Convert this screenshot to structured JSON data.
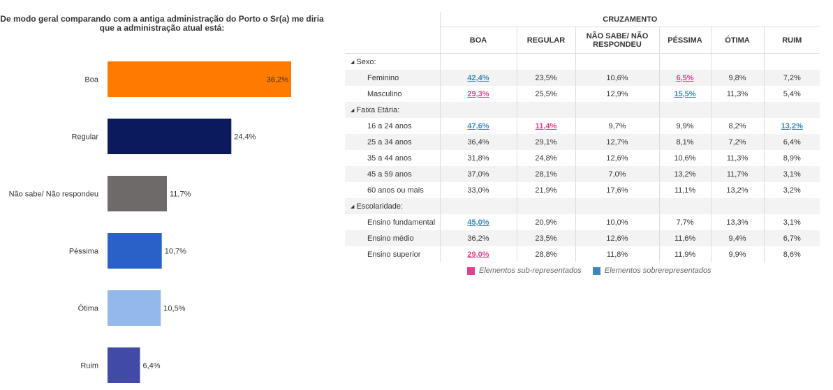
{
  "chart_data": {
    "type": "bar",
    "orientation": "horizontal",
    "title": "De modo geral comparando com a antiga administração do Porto o Sr(a) me diria que a administração atual está:",
    "categories": [
      "Boa",
      "Regular",
      "Não sabe/ Não respondeu",
      "Péssima",
      "Ótima",
      "Ruim"
    ],
    "values": [
      36.2,
      24.4,
      11.7,
      10.7,
      10.5,
      6.4
    ],
    "value_labels": [
      "36,2%",
      "24,4%",
      "11,7%",
      "10,7%",
      "10,5%",
      "6,4%"
    ],
    "colors": [
      "#ff7b00",
      "#0a1a5c",
      "#6e6a6a",
      "#2a61c9",
      "#93b9eb",
      "#414aa6"
    ],
    "xlabel": "",
    "ylabel": ""
  },
  "crosstab": {
    "group_header": "CRUZAMENTO",
    "columns": [
      "BOA",
      "REGULAR",
      "NÃO SABE/ NÃO RESPONDEU",
      "PÉSSIMA",
      "ÓTIMA",
      "RUIM"
    ],
    "sections": [
      {
        "title": "Sexo:",
        "rows": [
          {
            "label": "Feminino",
            "cells": [
              {
                "v": "42,4%",
                "f": "over"
              },
              {
                "v": "23,5%"
              },
              {
                "v": "10,6%"
              },
              {
                "v": "6,5%",
                "f": "under"
              },
              {
                "v": "9,8%"
              },
              {
                "v": "7,2%"
              }
            ]
          },
          {
            "label": "Masculino",
            "cells": [
              {
                "v": "29,3%",
                "f": "under"
              },
              {
                "v": "25,5%"
              },
              {
                "v": "12,9%"
              },
              {
                "v": "15,5%",
                "f": "over"
              },
              {
                "v": "11,3%"
              },
              {
                "v": "5,4%"
              }
            ]
          }
        ]
      },
      {
        "title": "Faixa Etária:",
        "rows": [
          {
            "label": "16 a 24 anos",
            "cells": [
              {
                "v": "47,6%",
                "f": "over"
              },
              {
                "v": "11,4%",
                "f": "under"
              },
              {
                "v": "9,7%"
              },
              {
                "v": "9,9%"
              },
              {
                "v": "8,2%"
              },
              {
                "v": "13,2%",
                "f": "over"
              }
            ]
          },
          {
            "label": "25 a 34 anos",
            "cells": [
              {
                "v": "36,4%"
              },
              {
                "v": "29,1%"
              },
              {
                "v": "12,7%"
              },
              {
                "v": "8,1%"
              },
              {
                "v": "7,2%"
              },
              {
                "v": "6,4%"
              }
            ]
          },
          {
            "label": "35 a 44 anos",
            "cells": [
              {
                "v": "31,8%"
              },
              {
                "v": "24,8%"
              },
              {
                "v": "12,6%"
              },
              {
                "v": "10,6%"
              },
              {
                "v": "11,3%"
              },
              {
                "v": "8,9%"
              }
            ]
          },
          {
            "label": "45 a 59 anos",
            "cells": [
              {
                "v": "37,0%"
              },
              {
                "v": "28,1%"
              },
              {
                "v": "7,0%"
              },
              {
                "v": "13,2%"
              },
              {
                "v": "11,7%"
              },
              {
                "v": "3,1%"
              }
            ]
          },
          {
            "label": "60 anos ou mais",
            "cells": [
              {
                "v": "33,0%"
              },
              {
                "v": "21,9%"
              },
              {
                "v": "17,6%"
              },
              {
                "v": "11,1%"
              },
              {
                "v": "13,2%"
              },
              {
                "v": "3,2%"
              }
            ]
          }
        ]
      },
      {
        "title": "Escolaridade:",
        "rows": [
          {
            "label": "Ensino fundamental",
            "cells": [
              {
                "v": "45,0%",
                "f": "over"
              },
              {
                "v": "20,9%"
              },
              {
                "v": "10,0%"
              },
              {
                "v": "7,7%"
              },
              {
                "v": "13,3%"
              },
              {
                "v": "3,1%"
              }
            ]
          },
          {
            "label": "Ensino médio",
            "cells": [
              {
                "v": "36,2%"
              },
              {
                "v": "23,5%"
              },
              {
                "v": "12,6%"
              },
              {
                "v": "11,6%"
              },
              {
                "v": "9,4%"
              },
              {
                "v": "6,7%"
              }
            ]
          },
          {
            "label": "Ensino superior",
            "cells": [
              {
                "v": "29,0%",
                "f": "under"
              },
              {
                "v": "28,8%"
              },
              {
                "v": "11,8%"
              },
              {
                "v": "11,9%"
              },
              {
                "v": "9,9%"
              },
              {
                "v": "8,6%"
              }
            ]
          }
        ]
      }
    ]
  },
  "legend": {
    "under_label": "Elementos sub-representados",
    "over_label": "Elementos sobrerepresentados",
    "under_color": "#e2408a",
    "over_color": "#3a87b8"
  }
}
